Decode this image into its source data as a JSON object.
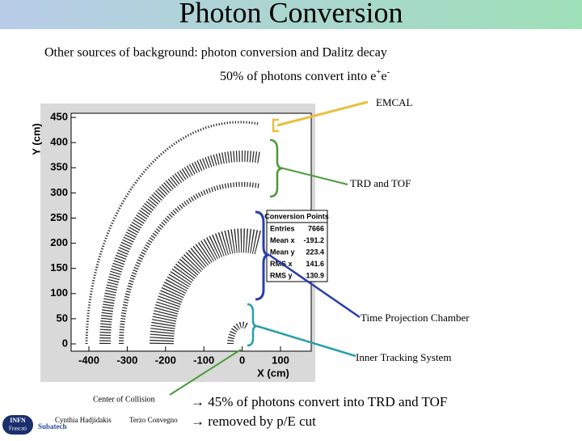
{
  "title": "Photon Conversion",
  "subtitle": "Other sources of background: photon conversion and Dalitz decay",
  "note": {
    "text": "50% of photons convert into e",
    "sup1": "+",
    "mid": "e",
    "sup2": "-"
  },
  "plot": {
    "ylabel": "Y (cm)",
    "xlabel": "X (cm)",
    "yticks": [
      450,
      400,
      350,
      300,
      250,
      200,
      150,
      100,
      50,
      0
    ],
    "xticks": [
      -400,
      -300,
      -200,
      -100,
      0,
      100
    ],
    "stats": {
      "title": "Conversion Points",
      "rows": [
        [
          "Entries",
          "7666"
        ],
        [
          "Mean x",
          "-191.2"
        ],
        [
          "Mean y",
          "223.4"
        ],
        [
          "RMS x",
          "141.6"
        ],
        [
          "RMS y",
          "130.9"
        ]
      ]
    }
  },
  "labels": {
    "emcal": "EMCAL",
    "trd": "TRD and TOF",
    "tpc": "Time Projection Chamber",
    "its": "Inner Tracking System",
    "center": "Center of Collision"
  },
  "bullets": [
    "→ 45% of photons convert into TRD and TOF",
    "→ removed by p/E cut"
  ],
  "footer": {
    "author": "Cynthia Hadjidakis",
    "event": "Terzo Convegno",
    "logo1a": "INFN",
    "logo1b": "Frascati",
    "logo2": "Subatech"
  }
}
